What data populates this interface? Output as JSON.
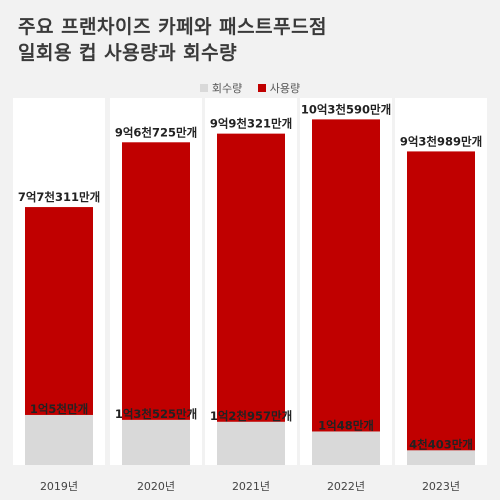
{
  "title_lines": [
    "주요 프랜차이즈 카페와 패스트푸드점",
    "일회용 컵 사용량과 회수량"
  ],
  "legend": [
    {
      "label": "회수량",
      "color": "#d9d9d9"
    },
    {
      "label": "사용량",
      "color": "#c00000"
    }
  ],
  "chart_data": {
    "type": "bar",
    "title": "주요 프랜차이즈 카페와 패스트푸드점 일회용 컵 사용량과 회수량",
    "categories": [
      "2019년",
      "2020년",
      "2021년",
      "2022년",
      "2023년"
    ],
    "series": [
      {
        "name": "사용량",
        "color": "#c00000",
        "values": [
          77311,
          96725,
          99321,
          103590,
          93989
        ],
        "labels": [
          "7억7천311만개",
          "9억6천725만개",
          "9억9천321만개",
          "10억3천590만개",
          "9억3천989만개"
        ]
      },
      {
        "name": "회수량",
        "color": "#d9d9d9",
        "values": [
          15000,
          13525,
          12957,
          10048,
          4403
        ],
        "labels": [
          "1억5천만개",
          "1억3천525만개",
          "1억2천957만개",
          "1억48만개",
          "4천403만개"
        ]
      }
    ],
    "ylim": [
      0,
      110000
    ],
    "grid": false,
    "legend_position": "top"
  }
}
